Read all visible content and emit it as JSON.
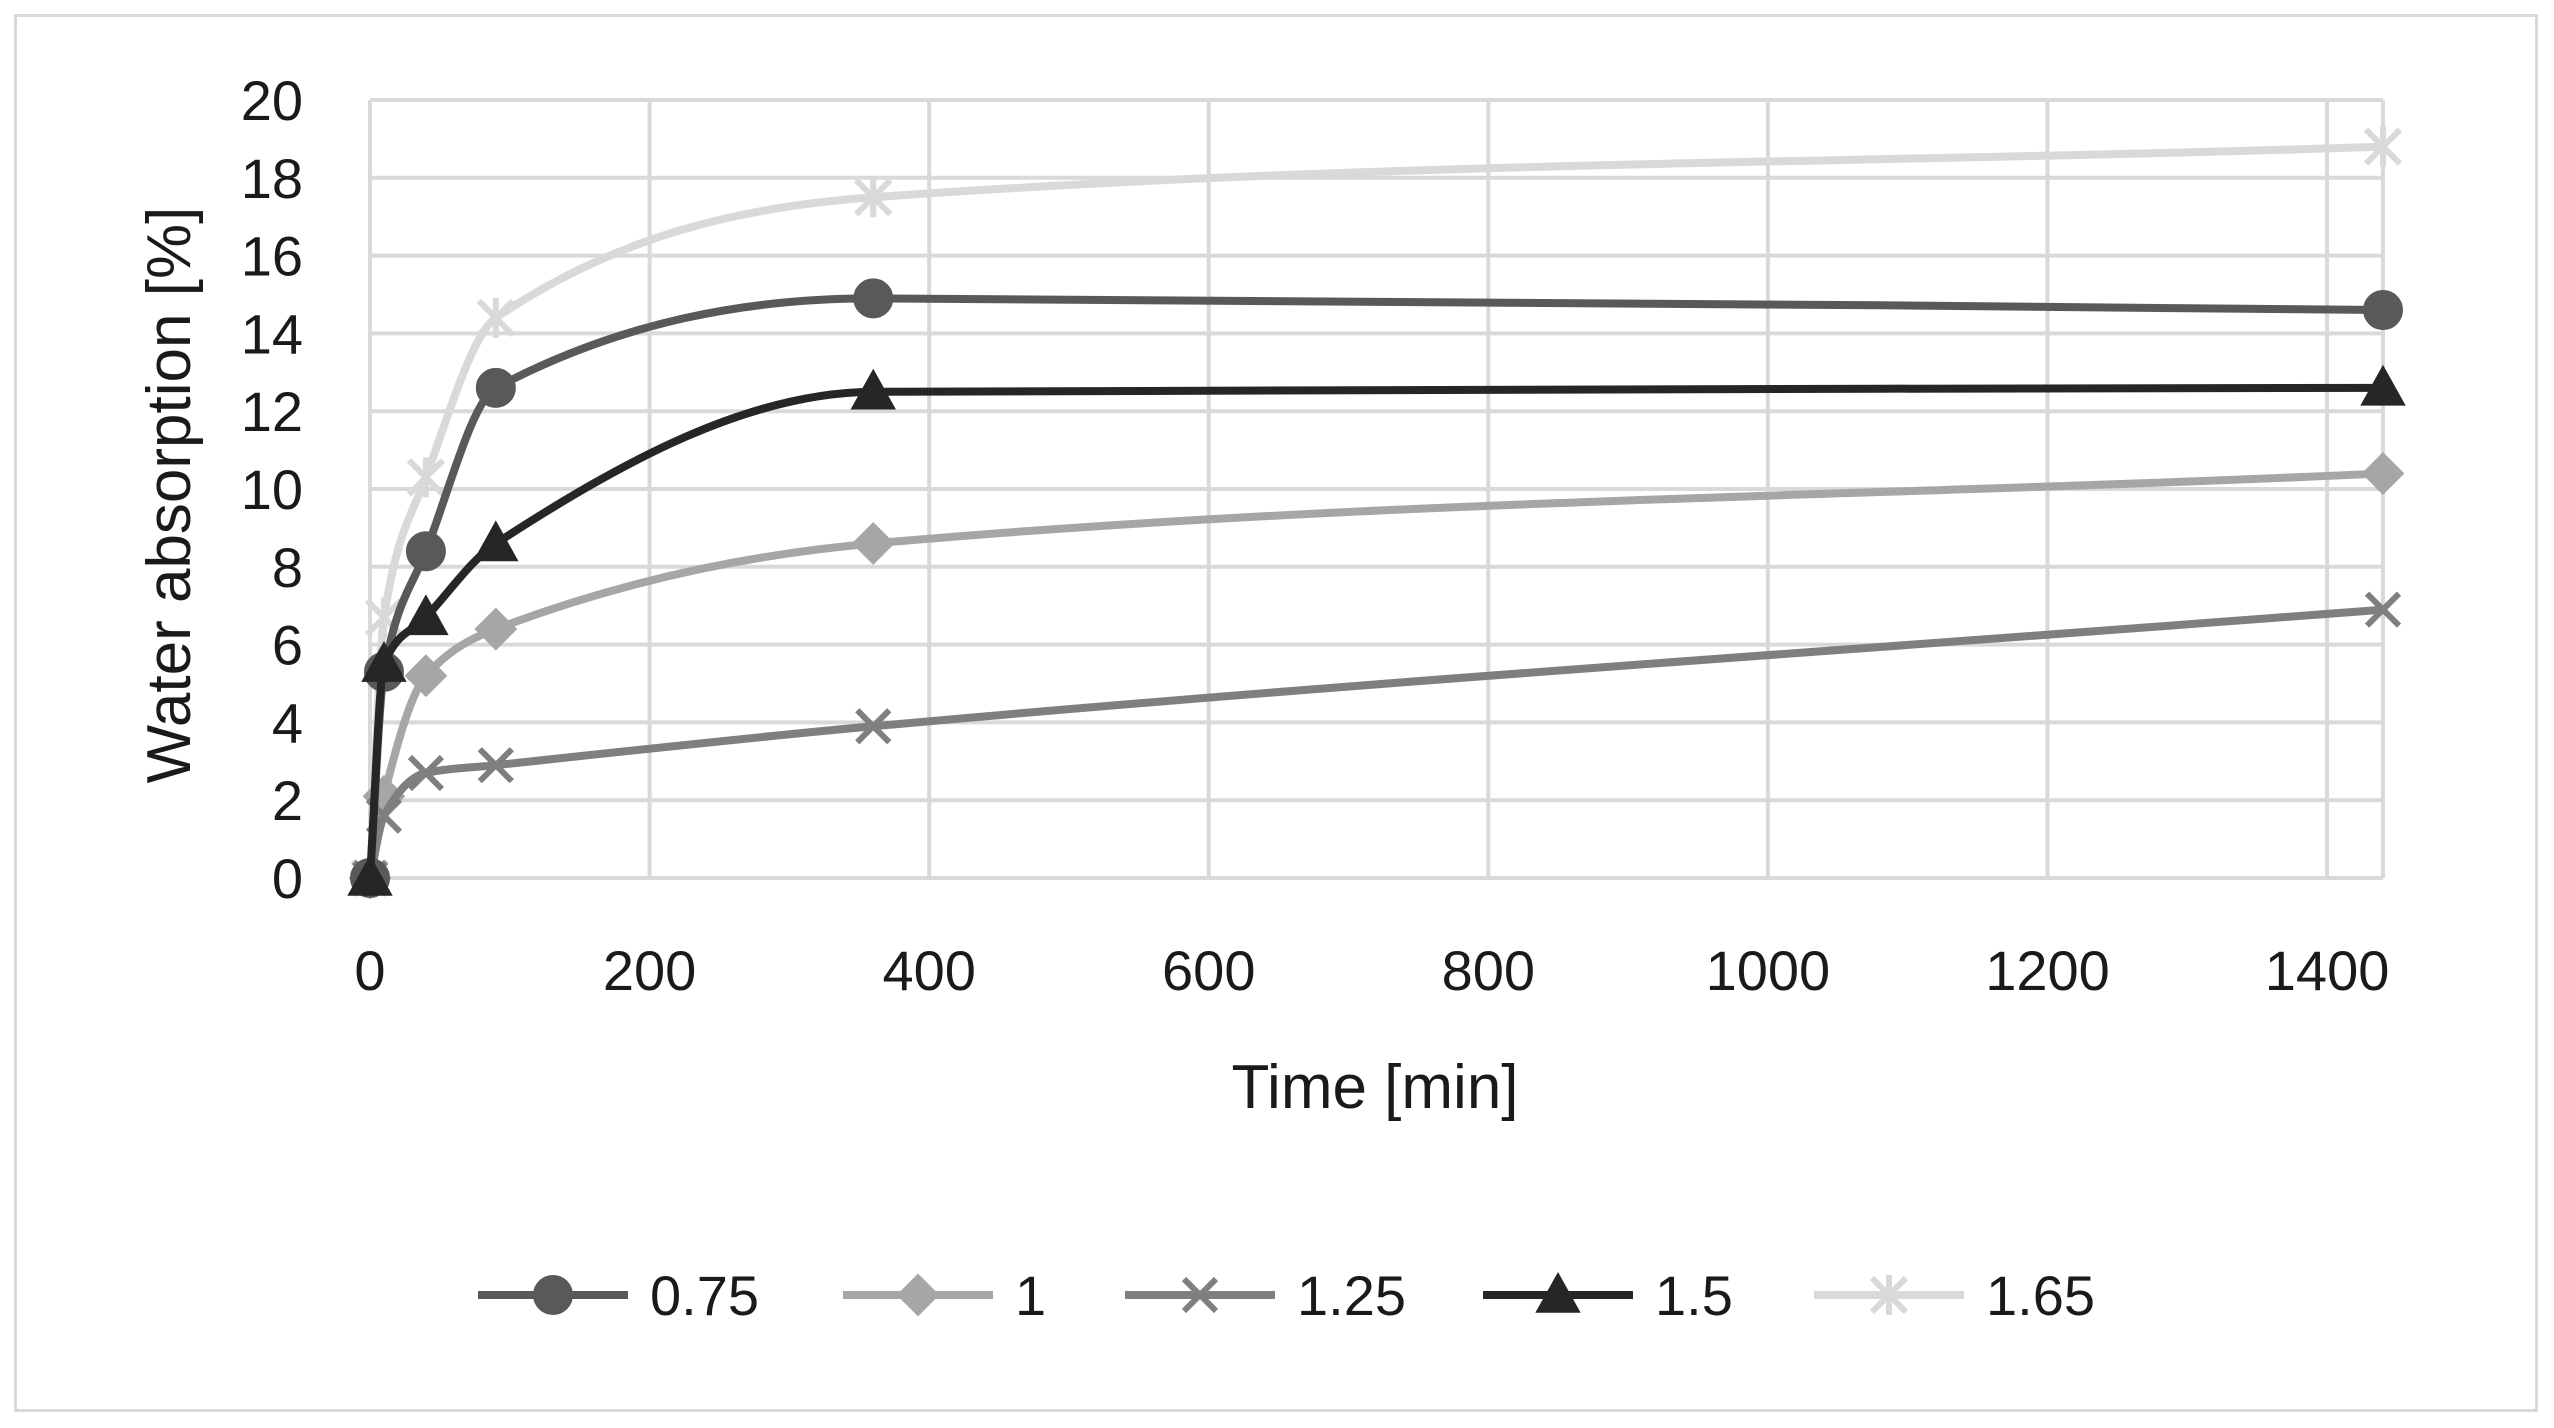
{
  "chart_data": {
    "type": "line",
    "title": "",
    "xlabel": "Time [min]",
    "ylabel": "Water absorption [%]",
    "xlim": [
      0,
      1440
    ],
    "ylim": [
      0,
      20
    ],
    "xticks": [
      0,
      200,
      400,
      600,
      800,
      1000,
      1200,
      1400
    ],
    "yticks": [
      0,
      2,
      4,
      6,
      8,
      10,
      12,
      14,
      16,
      18,
      20
    ],
    "grid": true,
    "legend_position": "bottom",
    "x": [
      0,
      10,
      40,
      90,
      360,
      1440
    ],
    "series": [
      {
        "name": "0.75",
        "marker": "circle",
        "color": "#595959",
        "values": [
          0,
          5.3,
          8.4,
          12.6,
          14.9,
          14.6
        ]
      },
      {
        "name": "1",
        "marker": "diamond",
        "color": "#a6a6a6",
        "values": [
          0,
          2.1,
          5.2,
          6.4,
          8.6,
          10.4
        ]
      },
      {
        "name": "1.25",
        "marker": "x",
        "color": "#7f7f7f",
        "values": [
          0,
          1.6,
          2.7,
          2.9,
          3.9,
          6.9
        ]
      },
      {
        "name": "1.5",
        "marker": "triangle",
        "color": "#262626",
        "values": [
          0,
          5.5,
          6.7,
          8.6,
          12.5,
          12.6
        ]
      },
      {
        "name": "1.65",
        "marker": "star",
        "color": "#d9d9d9",
        "values": [
          0,
          6.7,
          10.3,
          14.4,
          17.5,
          18.8
        ]
      }
    ]
  }
}
